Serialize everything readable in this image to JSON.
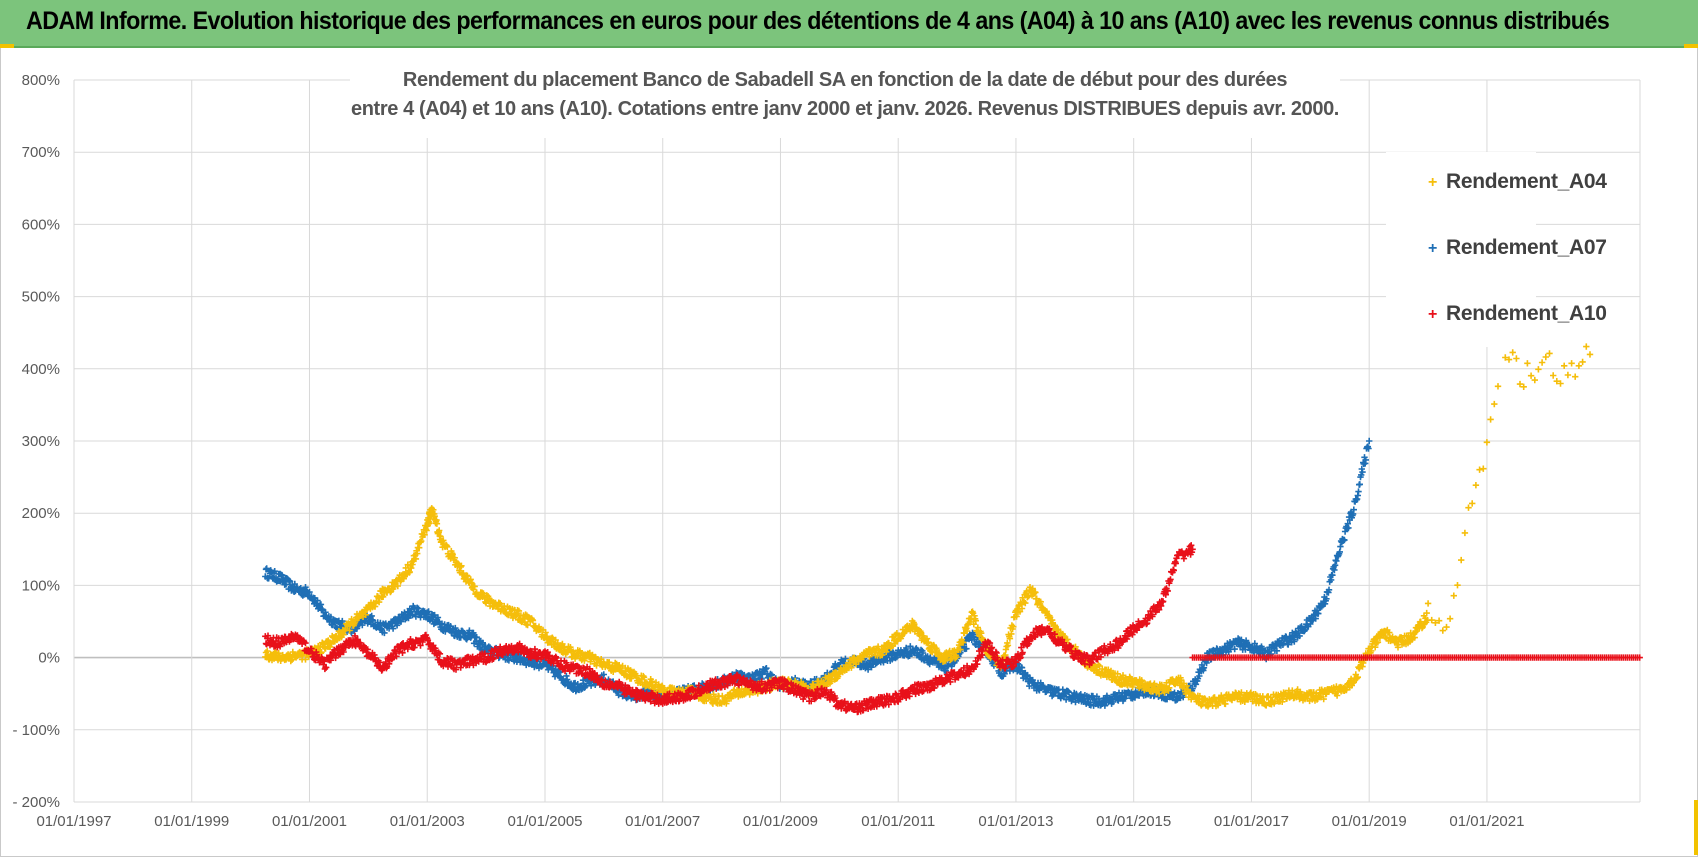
{
  "banner": {
    "title": "ADAM Informe. Evolution historique des performances en euros pour des détentions de 4 ans (A04) à 10 ans (A10) avec les revenus connus distribués"
  },
  "colors": {
    "banner_bg": "#7cc47c",
    "A04": "#f5be0b",
    "A07": "#1f6fb5",
    "A10": "#e8101a",
    "grid": "#d9d9d9",
    "axis_text": "#595959"
  },
  "chart_data": {
    "type": "scatter",
    "title_lines": [
      "Rendement du placement Banco de Sabadell SA en fonction de la date de début pour des durées",
      "entre 4 (A04) et 10 ans (A10).  Cotations entre janv 2000 et janv. 2026. Revenus  DISTRIBUES depuis avr. 2000."
    ],
    "xlabel": "",
    "ylabel": "",
    "xlim": [
      1997.0,
      2023.6
    ],
    "ylim": [
      -200,
      800
    ],
    "y_ticks": [
      -200,
      -100,
      0,
      100,
      200,
      300,
      400,
      500,
      600,
      700,
      800
    ],
    "y_tick_labels": [
      "- 200%",
      "- 100%",
      "0%",
      "100%",
      "200%",
      "300%",
      "400%",
      "500%",
      "600%",
      "700%",
      "800%"
    ],
    "x_ticks": [
      1997,
      1999,
      2001,
      2003,
      2005,
      2007,
      2009,
      2011,
      2013,
      2015,
      2017,
      2019,
      2021
    ],
    "x_tick_labels": [
      "01/01/1997",
      "01/01/1999",
      "01/01/2001",
      "01/01/2003",
      "01/01/2005",
      "01/01/2007",
      "01/01/2009",
      "01/01/2011",
      "01/01/2013",
      "01/01/2015",
      "01/01/2017",
      "01/01/2019",
      "01/01/2021"
    ],
    "legend": [
      "Rendement_A04",
      "Rendement_A07",
      "Rendement_A10"
    ],
    "legend_position": "top-right",
    "grid": true,
    "series": [
      {
        "name": "Rendement_A04",
        "x": [
          2000.25,
          2000.5,
          2000.75,
          2001.0,
          2001.25,
          2001.5,
          2001.75,
          2002.0,
          2002.25,
          2002.5,
          2002.75,
          2003.0,
          2003.08,
          2003.25,
          2003.5,
          2003.75,
          2004.0,
          2004.25,
          2004.5,
          2004.75,
          2005.0,
          2005.25,
          2005.5,
          2005.75,
          2006.0,
          2006.25,
          2006.5,
          2006.75,
          2007.0,
          2007.25,
          2007.5,
          2007.75,
          2008.0,
          2008.25,
          2008.5,
          2008.75,
          2009.0,
          2009.25,
          2009.5,
          2009.75,
          2010.0,
          2010.25,
          2010.5,
          2010.75,
          2011.0,
          2011.25,
          2011.5,
          2011.75,
          2012.0,
          2012.25,
          2012.5,
          2012.75,
          2013.0,
          2013.25,
          2013.5,
          2013.75,
          2014.0,
          2014.25,
          2014.5,
          2014.75,
          2015.0,
          2015.25,
          2015.5,
          2015.75,
          2016.0,
          2016.25,
          2016.5,
          2016.75,
          2017.0,
          2017.25,
          2017.5,
          2017.75,
          2018.0,
          2018.25,
          2018.5,
          2018.75,
          2019.0,
          2019.25,
          2019.5,
          2019.75,
          2020.0,
          2020.25,
          2020.5,
          2020.75,
          2021.0,
          2021.25,
          2021.5,
          2021.75,
          2022.0,
          2022.25,
          2022.5,
          2022.75
        ],
        "values": [
          5,
          0,
          3,
          5,
          15,
          30,
          50,
          65,
          90,
          105,
          130,
          185,
          205,
          160,
          130,
          100,
          80,
          70,
          60,
          50,
          30,
          15,
          5,
          0,
          -10,
          -15,
          -25,
          -35,
          -45,
          -50,
          -48,
          -55,
          -60,
          -50,
          -45,
          -40,
          -35,
          -38,
          -45,
          -35,
          -20,
          -5,
          5,
          10,
          30,
          45,
          20,
          0,
          5,
          60,
          10,
          -10,
          60,
          95,
          60,
          30,
          10,
          -10,
          -20,
          -30,
          -35,
          -40,
          -45,
          -30,
          -55,
          -65,
          -58,
          -55,
          -55,
          -60,
          -55,
          -50,
          -55,
          -50,
          -45,
          -30,
          10,
          35,
          20,
          30,
          60,
          35,
          100,
          220,
          300,
          420,
          400,
          390,
          410,
          380,
          400,
          420
        ]
      },
      {
        "name": "Rendement_A07",
        "x": [
          2000.25,
          2000.5,
          2000.75,
          2001.0,
          2001.25,
          2001.5,
          2001.75,
          2002.0,
          2002.25,
          2002.5,
          2002.75,
          2003.0,
          2003.25,
          2003.5,
          2003.75,
          2004.0,
          2004.25,
          2004.5,
          2004.75,
          2005.0,
          2005.25,
          2005.5,
          2005.75,
          2006.0,
          2006.25,
          2006.5,
          2006.75,
          2007.0,
          2007.25,
          2007.5,
          2007.75,
          2008.0,
          2008.25,
          2008.5,
          2008.75,
          2009.0,
          2009.25,
          2009.5,
          2009.75,
          2010.0,
          2010.25,
          2010.5,
          2010.75,
          2011.0,
          2011.25,
          2011.5,
          2011.75,
          2012.0,
          2012.25,
          2012.5,
          2012.75,
          2013.0,
          2013.25,
          2013.5,
          2013.75,
          2014.0,
          2014.25,
          2014.5,
          2014.75,
          2015.0,
          2015.25,
          2015.5,
          2015.75,
          2016.0,
          2016.25,
          2016.5,
          2016.75,
          2017.0,
          2017.25,
          2017.5,
          2017.75,
          2018.0,
          2018.25,
          2018.5,
          2018.75,
          2019.0
        ],
        "values": [
          118,
          110,
          95,
          90,
          60,
          45,
          40,
          55,
          40,
          50,
          65,
          60,
          45,
          35,
          30,
          10,
          5,
          0,
          -5,
          -10,
          -25,
          -40,
          -35,
          -30,
          -45,
          -55,
          -50,
          -55,
          -50,
          -45,
          -40,
          -35,
          -25,
          -30,
          -20,
          -40,
          -35,
          -40,
          -30,
          -10,
          -5,
          -10,
          0,
          5,
          10,
          0,
          -15,
          0,
          30,
          10,
          -20,
          -10,
          -35,
          -45,
          -50,
          -55,
          -60,
          -60,
          -55,
          -50,
          -45,
          -50,
          -55,
          -40,
          0,
          10,
          20,
          15,
          5,
          20,
          30,
          50,
          80,
          150,
          210,
          300
        ]
      },
      {
        "name": "Rendement_A10",
        "x": [
          2000.25,
          2000.5,
          2000.75,
          2001.0,
          2001.25,
          2001.5,
          2001.75,
          2002.0,
          2002.25,
          2002.5,
          2002.75,
          2003.0,
          2003.25,
          2003.5,
          2003.75,
          2004.0,
          2004.25,
          2004.5,
          2004.75,
          2005.0,
          2005.25,
          2005.5,
          2005.75,
          2006.0,
          2006.25,
          2006.5,
          2006.75,
          2007.0,
          2007.25,
          2007.5,
          2007.75,
          2008.0,
          2008.25,
          2008.5,
          2008.75,
          2009.0,
          2009.25,
          2009.5,
          2009.75,
          2010.0,
          2010.25,
          2010.5,
          2010.75,
          2011.0,
          2011.25,
          2011.5,
          2011.75,
          2012.0,
          2012.25,
          2012.5,
          2012.75,
          2013.0,
          2013.25,
          2013.5,
          2013.75,
          2014.0,
          2014.25,
          2014.5,
          2014.75,
          2015.0,
          2015.25,
          2015.5,
          2015.75,
          2016.0
        ],
        "values": [
          25,
          20,
          30,
          10,
          -10,
          10,
          25,
          5,
          -15,
          10,
          20,
          25,
          -5,
          -10,
          -5,
          0,
          10,
          15,
          5,
          5,
          -10,
          -15,
          -20,
          -35,
          -40,
          -50,
          -55,
          -58,
          -55,
          -50,
          -40,
          -35,
          -30,
          -38,
          -40,
          -35,
          -45,
          -55,
          -45,
          -65,
          -70,
          -65,
          -60,
          -55,
          -45,
          -40,
          -30,
          -25,
          -15,
          20,
          -10,
          -5,
          30,
          40,
          20,
          5,
          -5,
          10,
          20,
          40,
          55,
          80,
          140,
          150
        ]
      }
    ],
    "A10_zero_segment": {
      "x_start": 2016.0,
      "x_end": 2023.6,
      "value": 0
    }
  }
}
